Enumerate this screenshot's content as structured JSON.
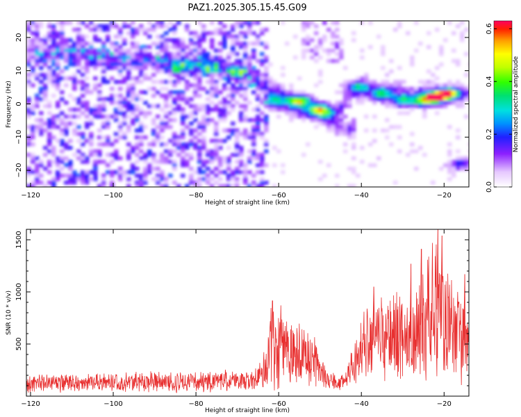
{
  "title": "PAZ1.2025.305.15.45.G09",
  "chart_data": [
    {
      "type": "heatmap",
      "xlabel": "Height of straight line (km)",
      "ylabel": "Frequency (Hz)",
      "xlim": [
        -121,
        -14
      ],
      "ylim": [
        -25,
        25
      ],
      "x_ticks": [
        -120,
        -100,
        -80,
        -60,
        -40,
        -20
      ],
      "y_ticks": [
        -20,
        -10,
        0,
        10,
        20
      ],
      "colorbar": {
        "label": "Normalized spectral amplitude",
        "range": [
          0,
          0.63
        ],
        "ticks": [
          0.0,
          0.2,
          0.4,
          0.6
        ]
      },
      "ridge": [
        {
          "x": -118,
          "y": 16
        },
        {
          "x": -100,
          "y": 14
        },
        {
          "x": -80,
          "y": 12
        },
        {
          "x": -70,
          "y": 10
        },
        {
          "x": -62,
          "y": 5
        },
        {
          "x": -55,
          "y": 0
        },
        {
          "x": -47,
          "y": -3
        },
        {
          "x": -40,
          "y": 5
        },
        {
          "x": -30,
          "y": 3
        },
        {
          "x": -20,
          "y": 3
        },
        {
          "x": -14,
          "y": 3
        }
      ],
      "secondary_ridge": [
        {
          "x": -62,
          "y": 1
        },
        {
          "x": -55,
          "y": -1
        },
        {
          "x": -50,
          "y": -3
        },
        {
          "x": -46,
          "y": -6
        },
        {
          "x": -42,
          "y": -8
        }
      ],
      "peaks": [
        {
          "x": -84,
          "y": 11,
          "value": 0.33
        },
        {
          "x": -77,
          "y": 11,
          "value": 0.22
        },
        {
          "x": -70,
          "y": 10,
          "value": 0.25
        },
        {
          "x": -61,
          "y": 1,
          "value": 0.25
        },
        {
          "x": -55,
          "y": 1,
          "value": 0.38
        },
        {
          "x": -50,
          "y": -2,
          "value": 0.45
        },
        {
          "x": -41,
          "y": 5,
          "value": 0.3
        },
        {
          "x": -35,
          "y": 3,
          "value": 0.35
        },
        {
          "x": -30,
          "y": 1,
          "value": 0.32
        },
        {
          "x": -25,
          "y": 1,
          "value": 0.45
        },
        {
          "x": -22,
          "y": 2,
          "value": 0.63
        },
        {
          "x": -19,
          "y": 3,
          "value": 0.58
        },
        {
          "x": -16,
          "y": -18,
          "value": 0.22
        }
      ]
    },
    {
      "type": "line",
      "xlabel": "Height of straight line (km)",
      "ylabel": "SNR (10 * v/v)",
      "xlim": [
        -121,
        -14
      ],
      "ylim": [
        0,
        1600
      ],
      "x_ticks": [
        -120,
        -100,
        -80,
        -60,
        -40,
        -20
      ],
      "y_ticks": [
        500,
        1000,
        1500
      ],
      "series_color": "#e83030",
      "envelope": [
        {
          "x": -121,
          "mean": 130,
          "amp": 90
        },
        {
          "x": -100,
          "mean": 135,
          "amp": 90
        },
        {
          "x": -80,
          "mean": 140,
          "amp": 95
        },
        {
          "x": -66,
          "mean": 150,
          "amp": 100
        },
        {
          "x": -63,
          "mean": 250,
          "amp": 200
        },
        {
          "x": -62,
          "mean": 480,
          "amp": 380
        },
        {
          "x": -58,
          "mean": 440,
          "amp": 330
        },
        {
          "x": -52,
          "mean": 350,
          "amp": 270
        },
        {
          "x": -48,
          "mean": 150,
          "amp": 80
        },
        {
          "x": -44,
          "mean": 130,
          "amp": 70
        },
        {
          "x": -40,
          "mean": 450,
          "amp": 350
        },
        {
          "x": -35,
          "mean": 600,
          "amp": 420
        },
        {
          "x": -30,
          "mean": 520,
          "amp": 400
        },
        {
          "x": -25,
          "mean": 700,
          "amp": 500
        },
        {
          "x": -21,
          "mean": 850,
          "amp": 650
        },
        {
          "x": -18,
          "mean": 650,
          "amp": 500
        },
        {
          "x": -14,
          "mean": 500,
          "amp": 380
        }
      ],
      "peaks": [
        {
          "x": -61.5,
          "y": 915
        },
        {
          "x": -37,
          "y": 1050
        },
        {
          "x": -28,
          "y": 1270
        },
        {
          "x": -25.5,
          "y": 1410
        },
        {
          "x": -21.5,
          "y": 1600
        },
        {
          "x": -20.5,
          "y": 1540
        },
        {
          "x": -15,
          "y": 1170
        }
      ]
    }
  ]
}
